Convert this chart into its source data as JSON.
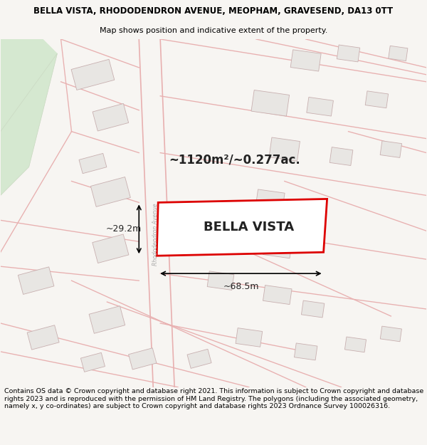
{
  "title_line1": "BELLA VISTA, RHODODENDRON AVENUE, MEOPHAM, GRAVESEND, DA13 0TT",
  "title_line2": "Map shows position and indicative extent of the property.",
  "footer_text": "Contains OS data © Crown copyright and database right 2021. This information is subject to Crown copyright and database rights 2023 and is reproduced with the permission of HM Land Registry. The polygons (including the associated geometry, namely x, y co-ordinates) are subject to Crown copyright and database rights 2023 Ordnance Survey 100026316.",
  "property_label": "BELLA VISTA",
  "area_label": "~1120m²/~0.277ac.",
  "dim_width": "~68.5m",
  "dim_height": "~29.2m",
  "road_label": "Rhododendron Avenue",
  "bg_color": "#f7f5f2",
  "map_bg": "#f7f5f2",
  "plot_fill": "#f7f5f2",
  "plot_edge": "#dd0000",
  "road_color": "#e8b0b0",
  "neighbor_fill": "#e8e6e3",
  "neighbor_edge": "#c8b0b0",
  "green_fill": "#d5e8d0",
  "title_fontsize": 8.5,
  "subtitle_fontsize": 8.0,
  "footer_fontsize": 6.8,
  "label_fontsize": 13,
  "area_fontsize": 12
}
